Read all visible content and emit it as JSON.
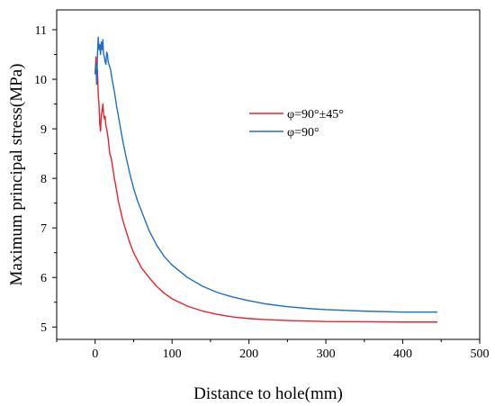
{
  "chart_data": {
    "type": "line",
    "title": "",
    "xlabel": "Distance to hole(mm)",
    "ylabel": "Maximum principal stress(MPa)",
    "xlim": [
      -50,
      500
    ],
    "ylim": [
      4.75,
      11.4
    ],
    "x_ticks": [
      0,
      100,
      200,
      300,
      400,
      500
    ],
    "y_ticks": [
      5,
      6,
      7,
      8,
      9,
      10,
      11
    ],
    "grid": false,
    "legend_position": "center-right",
    "series": [
      {
        "name": "φ=90°±45°",
        "color": "#e8242b",
        "x": [
          0,
          1,
          2,
          3,
          4,
          5,
          6,
          7,
          8,
          9,
          10,
          11,
          12,
          13,
          14,
          15,
          17,
          19,
          21,
          23,
          25,
          28,
          30,
          33,
          36,
          40,
          45,
          50,
          55,
          60,
          70,
          80,
          90,
          100,
          120,
          140,
          160,
          180,
          200,
          220,
          250,
          280,
          300,
          350,
          400,
          445
        ],
        "y": [
          10.1,
          10.45,
          9.9,
          10.2,
          9.7,
          9.5,
          9.1,
          8.95,
          9.3,
          9.35,
          9.5,
          9.3,
          9.2,
          9.25,
          9.05,
          9.0,
          8.8,
          8.5,
          8.4,
          8.2,
          8.0,
          7.75,
          7.55,
          7.35,
          7.15,
          6.95,
          6.7,
          6.5,
          6.35,
          6.2,
          6.0,
          5.82,
          5.68,
          5.57,
          5.42,
          5.32,
          5.25,
          5.2,
          5.17,
          5.15,
          5.13,
          5.12,
          5.11,
          5.105,
          5.1,
          5.1
        ]
      },
      {
        "name": "φ=90°",
        "color": "#1f6fc5",
        "x": [
          0,
          1,
          2,
          3,
          4,
          5,
          6,
          7,
          8,
          9,
          10,
          11,
          12,
          13,
          14,
          15,
          16,
          17,
          18,
          20,
          22,
          25,
          28,
          32,
          36,
          40,
          45,
          50,
          55,
          60,
          70,
          80,
          90,
          100,
          120,
          140,
          160,
          180,
          200,
          220,
          250,
          280,
          300,
          350,
          400,
          445
        ],
        "y": [
          10.1,
          10.3,
          9.9,
          10.5,
          10.85,
          10.6,
          10.7,
          10.5,
          10.75,
          10.6,
          10.8,
          10.5,
          10.45,
          10.35,
          10.3,
          10.55,
          10.5,
          10.35,
          10.3,
          10.2,
          10.0,
          9.75,
          9.45,
          9.1,
          8.75,
          8.45,
          8.1,
          7.8,
          7.55,
          7.35,
          6.95,
          6.65,
          6.42,
          6.25,
          6.0,
          5.82,
          5.69,
          5.6,
          5.53,
          5.47,
          5.41,
          5.37,
          5.35,
          5.32,
          5.3,
          5.3
        ]
      }
    ]
  }
}
